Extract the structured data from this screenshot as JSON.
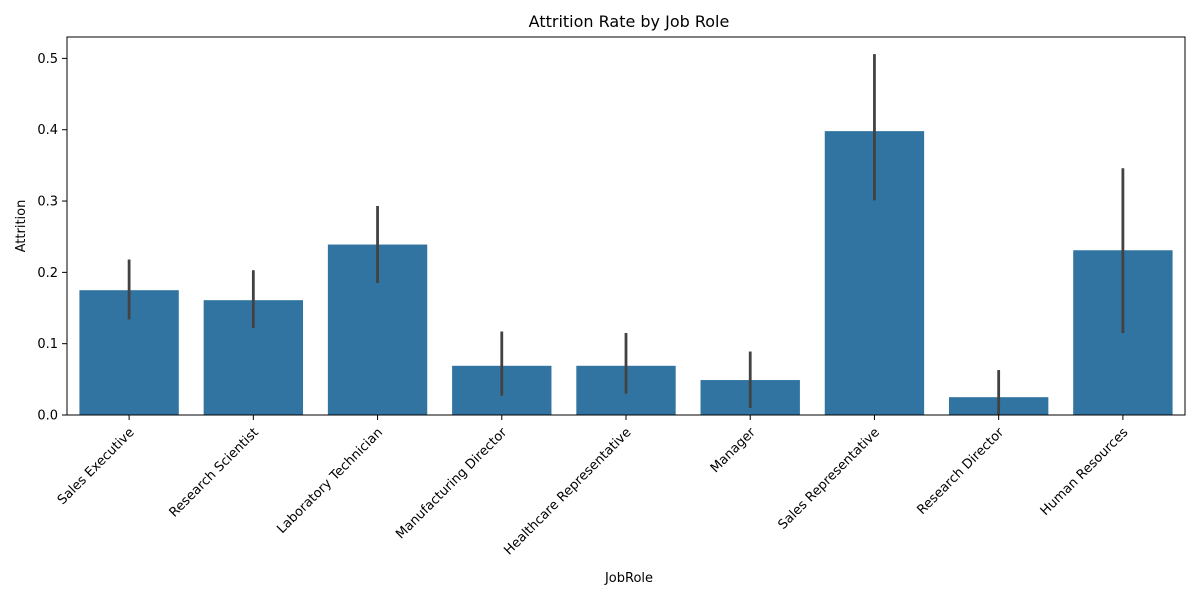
{
  "chart_data": {
    "type": "bar",
    "title": "Attrition Rate by Job Role",
    "xlabel": "JobRole",
    "ylabel": "Attrition",
    "ylim": [
      0,
      0.53
    ],
    "yticks": [
      0.0,
      0.1,
      0.2,
      0.3,
      0.4,
      0.5
    ],
    "ytick_labels": [
      "0.0",
      "0.1",
      "0.2",
      "0.3",
      "0.4",
      "0.5"
    ],
    "categories": [
      "Sales Executive",
      "Research Scientist",
      "Laboratory Technician",
      "Manufacturing Director",
      "Healthcare Representative",
      "Manager",
      "Sales Representative",
      "Research Director",
      "Human Resources"
    ],
    "values": [
      0.175,
      0.161,
      0.239,
      0.069,
      0.069,
      0.049,
      0.398,
      0.025,
      0.231
    ],
    "error_low": [
      0.134,
      0.122,
      0.185,
      0.027,
      0.03,
      0.01,
      0.301,
      0.0,
      0.115
    ],
    "error_high": [
      0.218,
      0.203,
      0.293,
      0.117,
      0.115,
      0.089,
      0.506,
      0.063,
      0.346
    ],
    "bar_color": "#3274a1",
    "error_color": "#424242",
    "grid": false,
    "legend": "none"
  }
}
